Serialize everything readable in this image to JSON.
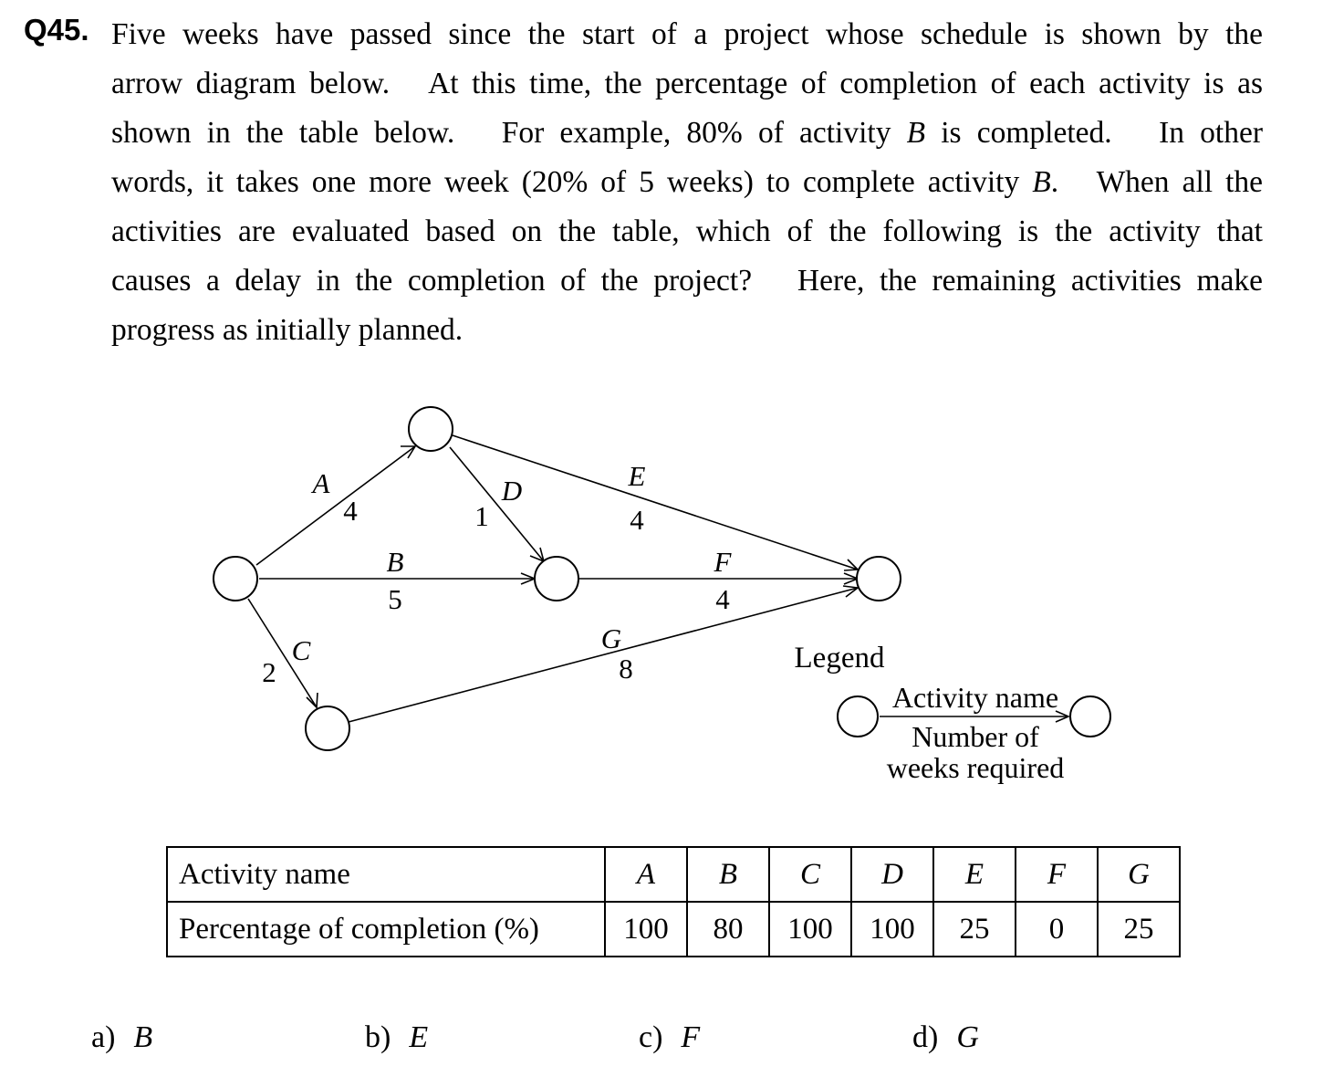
{
  "question": {
    "number": "Q45.",
    "lines": [
      "Five weeks have passed since the start of a project whose schedule is shown by the",
      "arrow diagram below. At this time, the percentage of completion of each activity is as",
      "shown in the table below. For example, 80% of activity B is completed. In other",
      "words, it takes one more week (20% of 5 weeks) to complete activity B. When all the",
      "activities are evaluated based on the table, which of the following is the activity that",
      "causes a delay in the completion of the project? Here, the remaining activities make",
      "progress as initially planned."
    ]
  },
  "diagram": {
    "activities": [
      {
        "name": "A",
        "weeks": "4"
      },
      {
        "name": "B",
        "weeks": "5"
      },
      {
        "name": "C",
        "weeks": "2"
      },
      {
        "name": "D",
        "weeks": "1"
      },
      {
        "name": "E",
        "weeks": "4"
      },
      {
        "name": "F",
        "weeks": "4"
      },
      {
        "name": "G",
        "weeks": "8"
      }
    ],
    "legend": {
      "title": "Legend",
      "activity_name": "Activity name",
      "weeks_line1": "Number of",
      "weeks_line2": "weeks required"
    }
  },
  "table": {
    "row1_label": "Activity name",
    "row2_label": "Percentage of completion (%)",
    "activities": [
      "A",
      "B",
      "C",
      "D",
      "E",
      "F",
      "G"
    ],
    "percentages": [
      "100",
      "80",
      "100",
      "100",
      "25",
      "0",
      "25"
    ]
  },
  "choices": [
    {
      "label": "a)",
      "value": "B"
    },
    {
      "label": "b)",
      "value": "E"
    },
    {
      "label": "c)",
      "value": "F"
    },
    {
      "label": "d)",
      "value": "G"
    }
  ]
}
